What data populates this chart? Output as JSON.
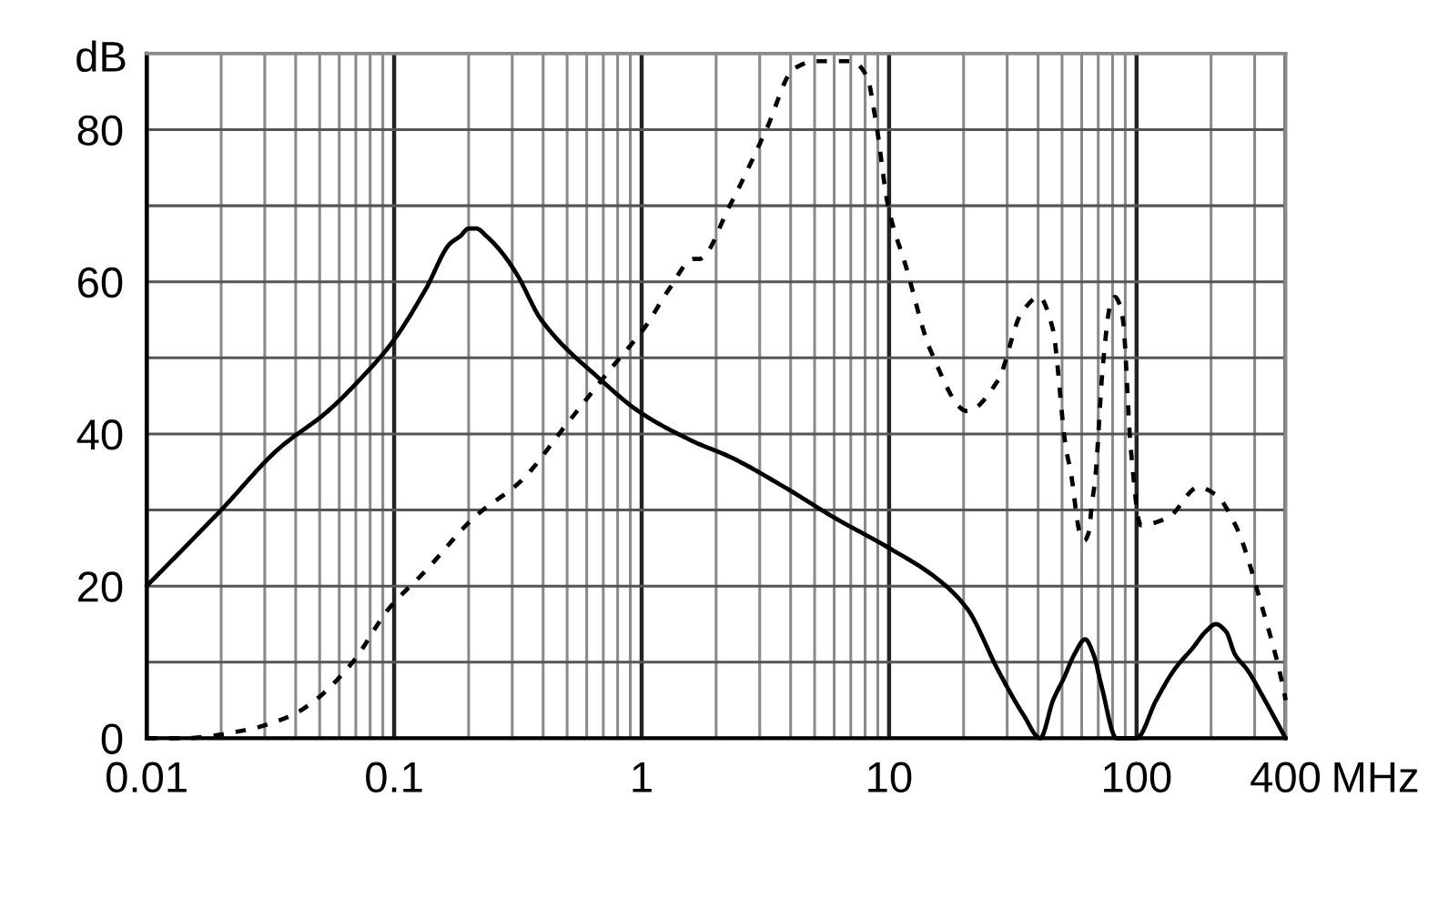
{
  "chart_data": {
    "type": "line",
    "xlabel": "MHz",
    "ylabel": "dB",
    "log": "x",
    "grid": true,
    "xlim": [
      0.01,
      400
    ],
    "ylim": [
      0,
      90
    ],
    "xticks": [
      0.01,
      {
        "value": 0.02,
        "label": null
      },
      {
        "value": 0.03,
        "label": null
      },
      {
        "value": 0.04,
        "label": null
      },
      {
        "value": 0.05,
        "label": null
      },
      {
        "value": 0.06,
        "label": null
      },
      {
        "value": 0.07,
        "label": null
      },
      {
        "value": 0.08,
        "label": null
      },
      {
        "value": 0.09,
        "label": null
      },
      0.1,
      {
        "value": 0.2,
        "label": null
      },
      {
        "value": 0.3,
        "label": null
      },
      {
        "value": 0.4,
        "label": null
      },
      {
        "value": 0.5,
        "label": null
      },
      {
        "value": 0.6,
        "label": null
      },
      {
        "value": 0.7,
        "label": null
      },
      {
        "value": 0.8,
        "label": null
      },
      {
        "value": 0.9,
        "label": null
      },
      1,
      {
        "value": 2,
        "label": null
      },
      {
        "value": 3,
        "label": null
      },
      {
        "value": 4,
        "label": null
      },
      {
        "value": 5,
        "label": null
      },
      {
        "value": 6,
        "label": null
      },
      {
        "value": 7,
        "label": null
      },
      {
        "value": 8,
        "label": null
      },
      {
        "value": 9,
        "label": null
      },
      10,
      {
        "value": 20,
        "label": null
      },
      {
        "value": 30,
        "label": null
      },
      {
        "value": 40,
        "label": null
      },
      {
        "value": 50,
        "label": null
      },
      {
        "value": 60,
        "label": null
      },
      {
        "value": 70,
        "label": null
      },
      {
        "value": 80,
        "label": null
      },
      {
        "value": 90,
        "label": null
      },
      100,
      {
        "value": 200,
        "label": null
      },
      {
        "value": 300,
        "label": null
      },
      400
    ],
    "yticks": [
      0,
      {
        "value": 10,
        "label": null
      },
      20,
      {
        "value": 30,
        "label": null
      },
      40,
      {
        "value": 50,
        "label": null
      },
      60,
      {
        "value": 70,
        "label": null
      },
      80
    ],
    "series": [
      {
        "color": "#000000",
        "line_style": "solid",
        "x": [
          0.01,
          0.02,
          0.034,
          0.054,
          0.072,
          0.098,
          0.134,
          0.168,
          0.185,
          0.2,
          0.215,
          0.236,
          0.27,
          0.313,
          0.393,
          0.69,
          0.97,
          1.62,
          2.27,
          3.78,
          6,
          10,
          15.6,
          20.7,
          27.5,
          35,
          40.8,
          46,
          51,
          56,
          62,
          67,
          72,
          83,
          100,
          120,
          142,
          170,
          190,
          209,
          230,
          250,
          280,
          330,
          400
        ],
        "values": [
          20,
          30,
          38,
          43,
          47,
          52,
          59,
          65,
          66,
          67,
          67,
          66,
          64,
          61,
          55,
          47,
          43,
          39,
          37,
          33,
          29,
          25,
          21,
          17,
          9,
          3,
          0,
          5,
          8,
          11,
          13,
          11,
          7,
          0,
          0,
          5,
          9,
          12,
          14,
          15,
          14,
          11,
          9,
          5,
          0
        ]
      },
      {
        "color": "#000000",
        "line_style": "dashed",
        "x": [
          0.01,
          0.014,
          0.0245,
          0.0385,
          0.048,
          0.068,
          0.095,
          0.134,
          0.21,
          0.33,
          0.49,
          0.77,
          1.03,
          1.29,
          1.62,
          1.71,
          2.27,
          3.19,
          4.12,
          5.03,
          7.06,
          8.13,
          8.85,
          9.9,
          11.7,
          14.7,
          20.7,
          27.5,
          34.4,
          40.4,
          45.7,
          51.9,
          54.2,
          59,
          61.5,
          64,
          66.1,
          68,
          73.1,
          78.4,
          81.8,
          85.5,
          88.1,
          94.8,
          104,
          134,
          178,
          209,
          251,
          323,
          395,
          400
        ],
        "values": [
          0,
          0,
          1,
          3,
          5,
          10,
          17,
          22,
          29,
          34,
          41,
          49,
          54,
          59,
          63,
          63,
          70,
          80,
          88,
          89,
          89,
          87,
          81,
          70,
          62,
          51,
          43,
          47,
          56,
          58,
          54,
          38,
          35,
          27,
          26,
          27,
          31,
          34,
          49,
          57,
          58,
          57,
          55,
          38,
          28,
          29,
          33,
          32,
          28,
          17,
          6,
          5
        ]
      }
    ]
  }
}
